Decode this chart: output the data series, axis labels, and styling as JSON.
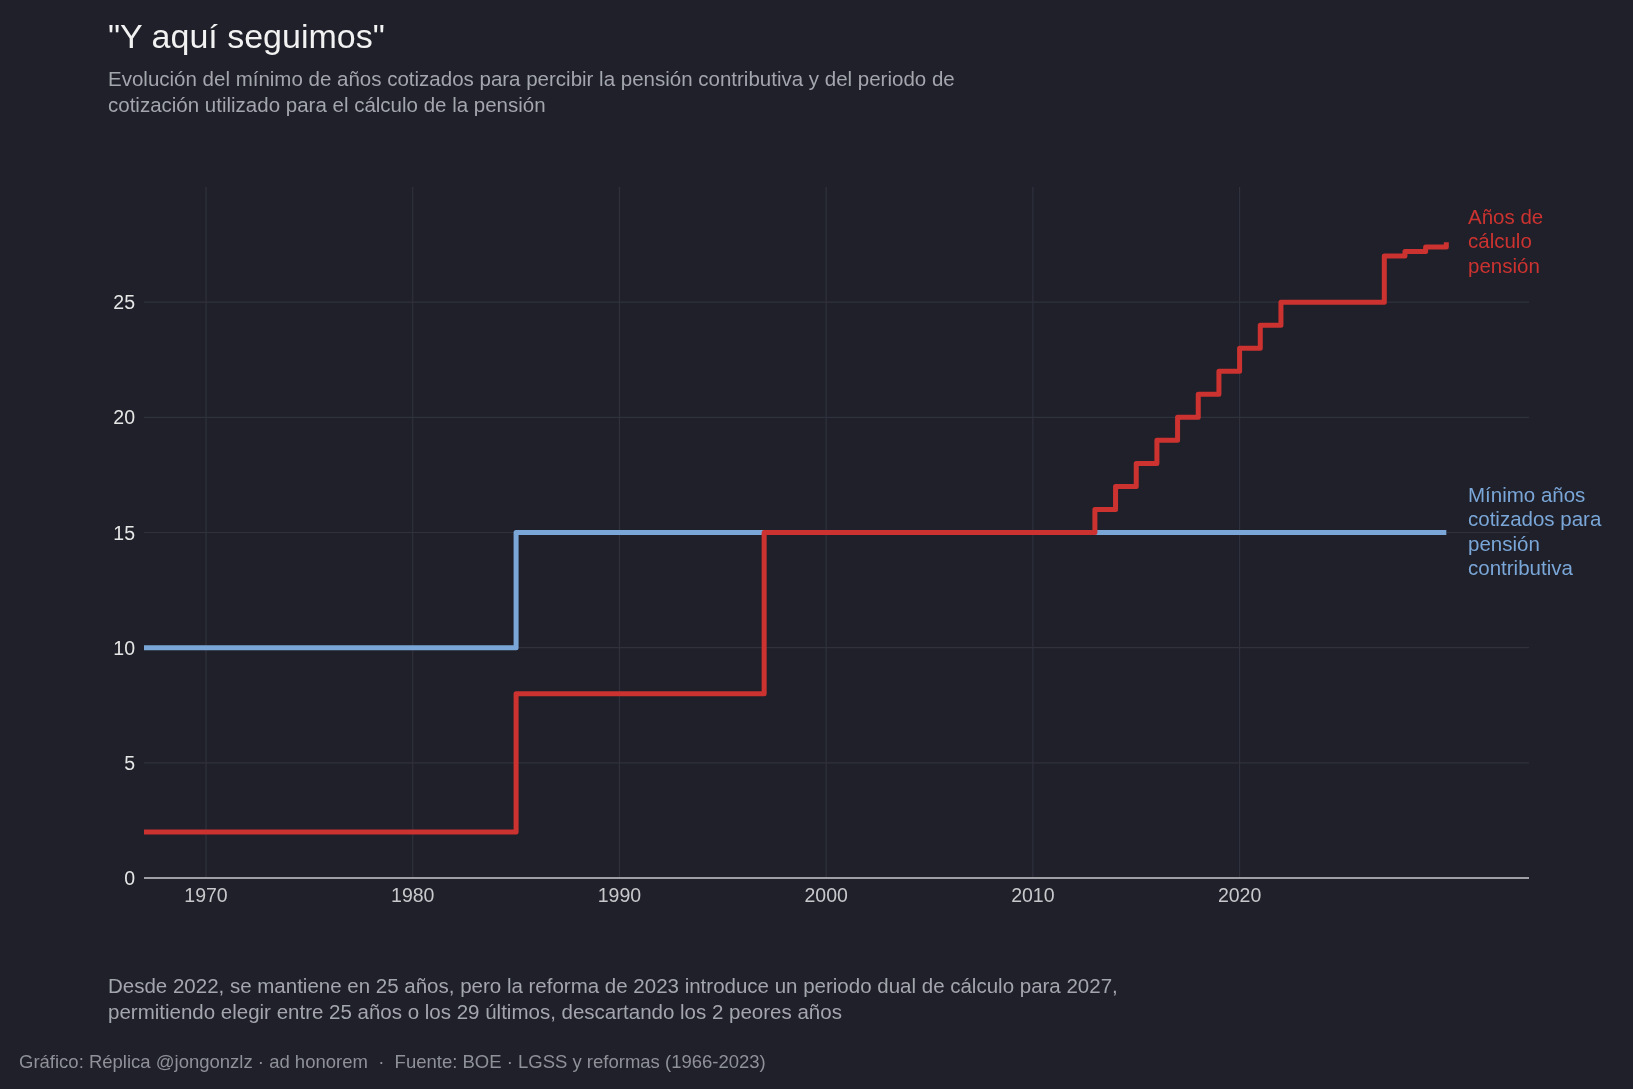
{
  "chart_data": {
    "type": "step",
    "title": "\"Y aquí seguimos\"",
    "subtitle": "Evolución del mínimo de años cotizados para percibir la pensión contributiva y del periodo de cotización utilizado para el cálculo de la pensión",
    "x": [
      1967,
      1985,
      1997,
      2013,
      2014,
      2015,
      2016,
      2017,
      2018,
      2019,
      2020,
      2021,
      2022,
      2027,
      2028,
      2029,
      2030
    ],
    "series": [
      {
        "name": "Mínimo años cotizados para pensión contributiva",
        "color": "#7aa6d8",
        "x": [
          1967,
          1985,
          2030
        ],
        "values": [
          10,
          15,
          15
        ]
      },
      {
        "name": "Años de cálculo pensión",
        "color": "#cc3330",
        "values": [
          2,
          8,
          15,
          16,
          17,
          18,
          19,
          20,
          21,
          22,
          23,
          24,
          25,
          27,
          27.2,
          27.4,
          27.6
        ]
      }
    ],
    "xlim": [
      1967,
      2034
    ],
    "xticks": [
      1970,
      1980,
      1990,
      2000,
      2010,
      2020
    ],
    "ylim": [
      0,
      30
    ],
    "yticks": [
      0,
      5,
      10,
      15,
      20,
      25
    ],
    "grid": true,
    "legend": false,
    "annotations": [
      "Desde 2022, se mantiene en 25 años, pero la reforma de 2023 introduce un periodo dual de cálculo para 2027, permitiendo elegir entre 25 años o los 29 últimos, descartando los 2 peores años",
      "Gráfico: Réplica @jongonzlz · ad honorem  ·  Fuente: BOE · LGSS y reformas (1966-2023)"
    ]
  }
}
